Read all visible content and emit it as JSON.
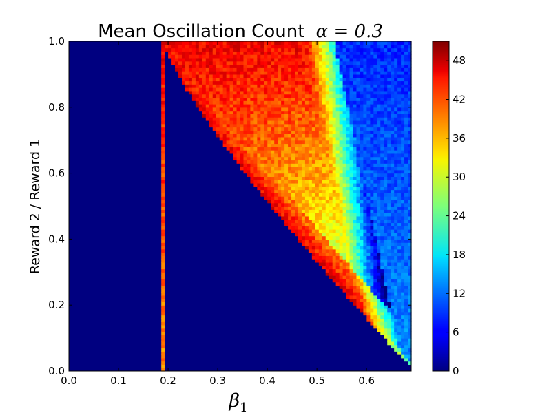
{
  "chart_data": {
    "type": "heatmap",
    "title": "Mean Oscillation Count",
    "title_math": "α = 0.3",
    "xlabel": "β",
    "xlabel_subscript": "1",
    "ylabel": "Reward 2 / Reward 1",
    "xlim": [
      0.0,
      0.69
    ],
    "ylim": [
      0.0,
      1.0
    ],
    "xticks": [
      "0.0",
      "0.1",
      "0.2",
      "0.3",
      "0.4",
      "0.5",
      "0.6"
    ],
    "xtick_values": [
      0.0,
      0.1,
      0.2,
      0.3,
      0.4,
      0.5,
      0.6
    ],
    "yticks": [
      "0.0",
      "0.2",
      "0.4",
      "0.6",
      "0.8",
      "1.0"
    ],
    "ytick_values": [
      0.0,
      0.2,
      0.4,
      0.6,
      0.8,
      1.0
    ],
    "colorbar": {
      "colormap": "jet",
      "range": [
        0,
        51
      ],
      "ticks": [
        "0",
        "6",
        "12",
        "18",
        "24",
        "30",
        "36",
        "42",
        "48"
      ],
      "tick_values": [
        0,
        6,
        12,
        18,
        24,
        30,
        36,
        42,
        48
      ]
    },
    "grid": false
  }
}
